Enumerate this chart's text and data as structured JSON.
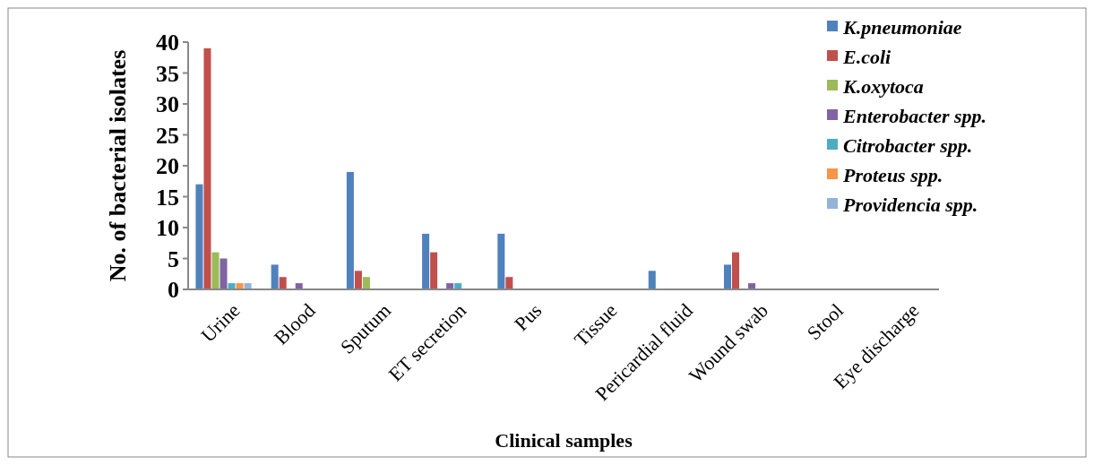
{
  "chart_data": {
    "type": "bar",
    "xlabel": "Clinical samples",
    "ylabel": "No. of bacterial isolates",
    "categories": [
      "Urine",
      "Blood",
      "Sputum",
      "ET secretion",
      "Pus",
      "Tissue",
      "Pericardial fluid",
      "Wound swab",
      "Stool",
      "Eye discharge"
    ],
    "series": [
      {
        "name": "K.pneumoniae",
        "color": "#4f81bd",
        "values": [
          17,
          4,
          19,
          9,
          9,
          0,
          3,
          4,
          0,
          0
        ]
      },
      {
        "name": "E.coli",
        "color": "#c0504d",
        "values": [
          39,
          2,
          3,
          6,
          2,
          0,
          0,
          6,
          0,
          0
        ]
      },
      {
        "name": "K.oxytoca",
        "color": "#9bbb59",
        "values": [
          6,
          0,
          2,
          0,
          0,
          0,
          0,
          0,
          0,
          0
        ]
      },
      {
        "name": "Enterobacter spp.",
        "color": "#8064a2",
        "values": [
          5,
          1,
          0,
          1,
          0,
          0,
          0,
          1,
          0,
          0
        ]
      },
      {
        "name": "Citrobacter spp.",
        "color": "#4bacc6",
        "values": [
          1,
          0,
          0,
          1,
          0,
          0,
          0,
          0,
          0,
          0
        ]
      },
      {
        "name": "Proteus spp.",
        "color": "#f79646",
        "values": [
          1,
          0,
          0,
          0,
          0,
          0,
          0,
          0,
          0,
          0
        ]
      },
      {
        "name": "Providencia spp.",
        "color": "#95b3d7",
        "values": [
          1,
          0,
          0,
          0,
          0,
          0,
          0,
          0,
          0,
          0
        ]
      }
    ],
    "ylim": [
      0,
      40
    ],
    "yticks": [
      0,
      5,
      10,
      15,
      20,
      25,
      30,
      35,
      40
    ],
    "legend": "top right"
  }
}
